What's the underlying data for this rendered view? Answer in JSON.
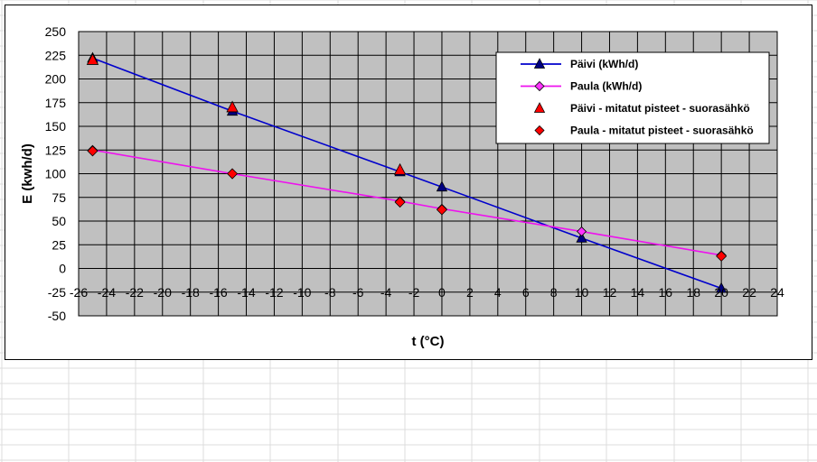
{
  "chart_data": {
    "type": "scatter",
    "title": "",
    "xlabel": "t (°C)",
    "ylabel": "E (kwh/d)",
    "xlim": [
      -26,
      24
    ],
    "ylim": [
      -50,
      250
    ],
    "x_ticks": [
      -26,
      -24,
      -22,
      -20,
      -18,
      -16,
      -14,
      -12,
      -10,
      -8,
      -6,
      -4,
      -2,
      0,
      2,
      4,
      6,
      8,
      10,
      12,
      14,
      16,
      18,
      20,
      22,
      24
    ],
    "y_ticks": [
      -50,
      -25,
      0,
      25,
      50,
      75,
      100,
      125,
      150,
      175,
      200,
      225,
      250
    ],
    "grid": true,
    "legend_position": "top-right",
    "plot_background": "#c0c0c0",
    "series": [
      {
        "name": "Päivi (kWh/d)",
        "kind": "line",
        "color": "#0000cc",
        "marker": "triangle",
        "marker_color": "#000080",
        "x": [
          -25,
          -15,
          -3,
          0,
          10,
          20
        ],
        "y": [
          222,
          166,
          102,
          86,
          32,
          -21
        ]
      },
      {
        "name": "Paula (kWh/d)",
        "kind": "line",
        "color": "#ee11ee",
        "marker": "diamond",
        "marker_color": "#ff33ff",
        "x": [
          -25,
          -15,
          -3,
          0,
          10,
          20
        ],
        "y": [
          125,
          100,
          71,
          63,
          39,
          14
        ]
      },
      {
        "name": "Päivi - mitatut pisteet - suorasähkö",
        "kind": "scatter",
        "color": "#ff0000",
        "marker": "triangle",
        "x": [
          -25,
          -15,
          -3
        ],
        "y": [
          220,
          170,
          104
        ]
      },
      {
        "name": "Paula - mitatut pisteet - suorasähkö",
        "kind": "scatter",
        "color": "#ff0000",
        "marker": "diamond",
        "x": [
          -25,
          -15,
          -3,
          0,
          20
        ],
        "y": [
          124,
          100,
          70,
          62,
          13
        ]
      }
    ]
  }
}
